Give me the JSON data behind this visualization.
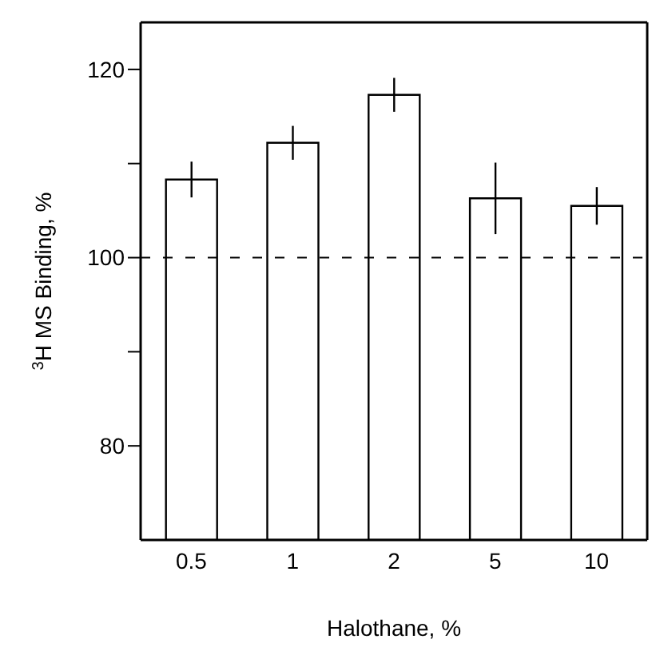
{
  "chart_data": {
    "type": "bar",
    "xlabel": "Halothane, %",
    "ylabel": "$^{3}$H MS Binding, %",
    "categories": [
      "0.5",
      "1",
      "2",
      "5",
      "10"
    ],
    "values": [
      108.3,
      112.2,
      117.3,
      106.3,
      105.5
    ],
    "errors": [
      1.9,
      1.8,
      1.8,
      3.8,
      2
    ],
    "color": "#ffffff",
    "ylim": [
      70,
      125
    ],
    "yticks": [
      80,
      {
        "value": 90,
        "label": null
      },
      100,
      {
        "value": 110,
        "label": null
      },
      120
    ],
    "ref_lines": [
      {
        "axis": "y",
        "value": 100,
        "line_style": "dashed",
        "color": "#000000"
      }
    ],
    "grid": false,
    "legend": false
  }
}
